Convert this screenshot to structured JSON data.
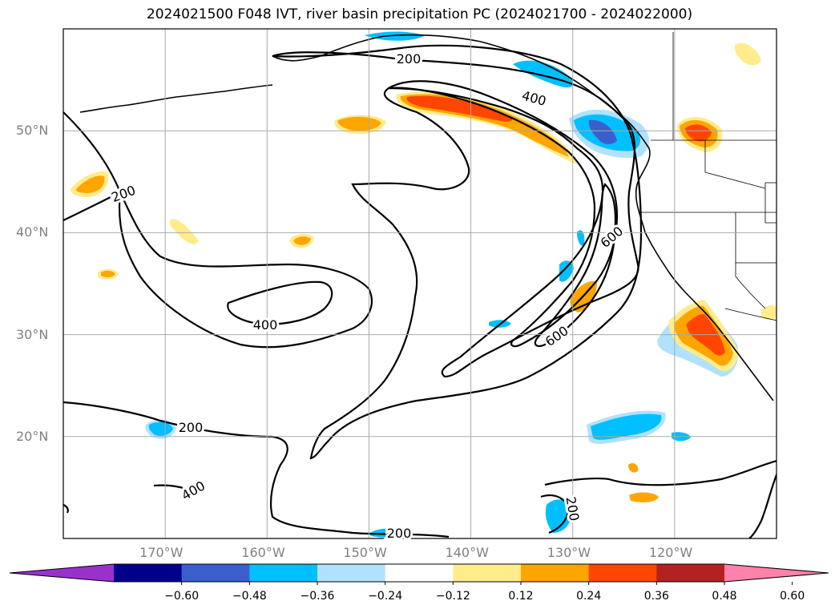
{
  "title": "2024021500 F048 IVT, river basin precipitation PC (2024021700 - 2024022000)",
  "map": {
    "lat_range": [
      10,
      60
    ],
    "lon_range": [
      -180,
      -110
    ],
    "lat_ticks": [
      {
        "value": 20,
        "label": "20°N"
      },
      {
        "value": 30,
        "label": "30°N"
      },
      {
        "value": 40,
        "label": "40°N"
      },
      {
        "value": 50,
        "label": "50°N"
      }
    ],
    "lon_ticks": [
      {
        "value": -170,
        "label": "170°W"
      },
      {
        "value": -160,
        "label": "160°W"
      },
      {
        "value": -150,
        "label": "150°W"
      },
      {
        "value": -140,
        "label": "140°W"
      },
      {
        "value": -130,
        "label": "130°W"
      },
      {
        "value": -120,
        "label": "120°W"
      }
    ],
    "grid": true,
    "contour_labels": [
      "200",
      "200",
      "200",
      "200",
      "200",
      "400",
      "400",
      "400",
      "600",
      "600"
    ]
  },
  "colorbar": {
    "colors": [
      "#9932cc",
      "#00008b",
      "#3a5fcd",
      "#00bfff",
      "#b0e2ff",
      "#ffffff",
      "#ffec8b",
      "#ffa500",
      "#ff4500",
      "#b22222",
      "#ff82ab"
    ],
    "ticks": [
      "−0.60",
      "−0.48",
      "−0.36",
      "−0.24",
      "−0.12",
      "0.12",
      "0.24",
      "0.36",
      "0.48",
      "0.60"
    ]
  }
}
